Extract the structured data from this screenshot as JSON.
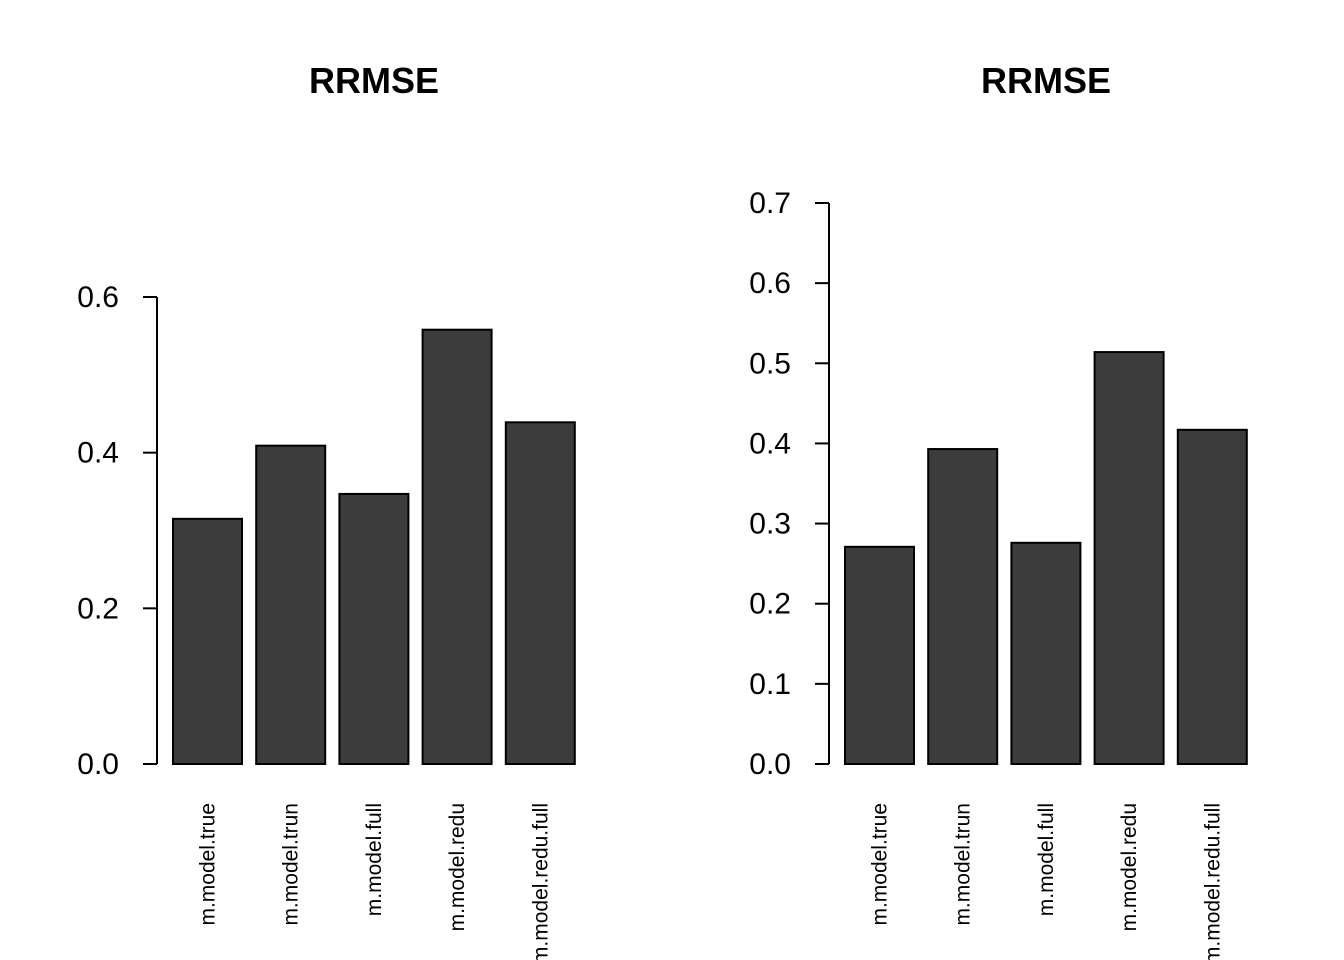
{
  "chart_data": [
    {
      "type": "bar",
      "title": "RRMSE",
      "categories": [
        "m.model.true",
        "m.model.trun",
        "m.model.full",
        "m.model.redu",
        "m.model.redu.full"
      ],
      "values": [
        0.315,
        0.409,
        0.347,
        0.558,
        0.439
      ],
      "ylim": [
        0,
        0.6
      ],
      "yticks": [
        "0.0",
        "0.2",
        "0.4",
        "0.6"
      ],
      "bar_color": "#3c3c3c",
      "grid": false
    },
    {
      "type": "bar",
      "title": "RRMSE",
      "categories": [
        "m.model.true",
        "m.model.trun",
        "m.model.full",
        "m.model.redu",
        "m.model.redu.full"
      ],
      "values": [
        0.271,
        0.393,
        0.276,
        0.514,
        0.417
      ],
      "ylim": [
        0,
        0.7
      ],
      "yticks": [
        "0.0",
        "0.1",
        "0.2",
        "0.3",
        "0.4",
        "0.5",
        "0.6",
        "0.7"
      ],
      "bar_color": "#3c3c3c",
      "grid": false
    }
  ]
}
